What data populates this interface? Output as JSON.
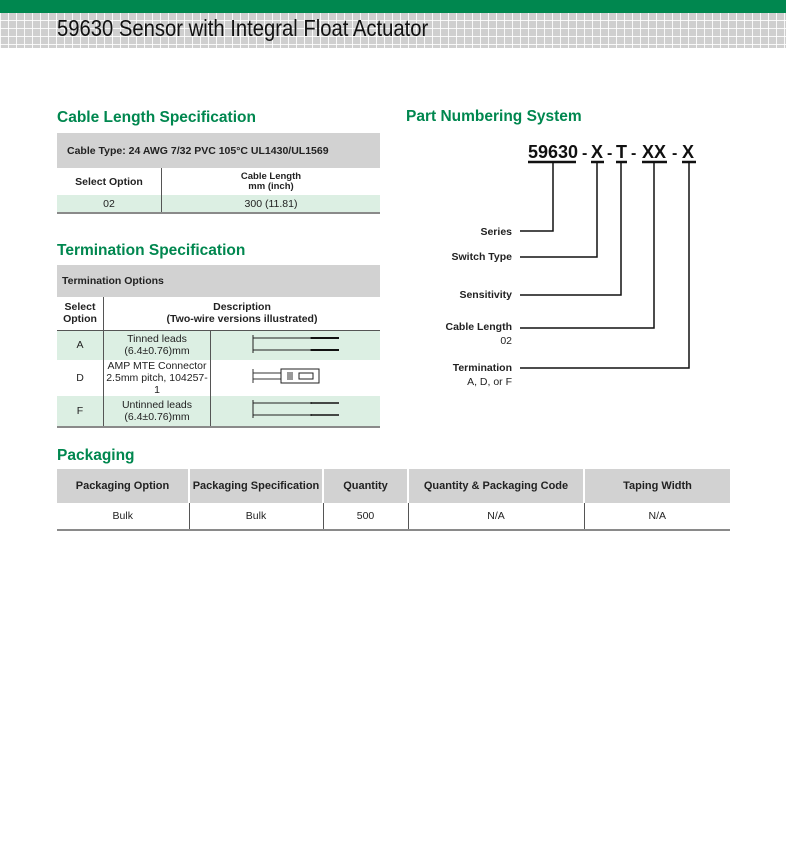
{
  "header": {
    "title": "59630 Sensor with Integral Float Actuator",
    "accent": "#00874f"
  },
  "cable": {
    "heading": "Cable Length Specification",
    "cable_type": "Cable Type: 24 AWG 7/32 PVC 105°C UL1430/UL1569",
    "col1": "Select Option",
    "col2a": "Cable Length",
    "col2b": "mm (inch)",
    "rows": [
      {
        "option": "02",
        "length": "300 (11.81)"
      }
    ]
  },
  "termination": {
    "heading": "Termination Specification",
    "options_label": "Termination Options",
    "col1a": "Select",
    "col1b": "Option",
    "col2a": "Description",
    "col2b": "(Two-wire versions illustrated)",
    "rows": [
      {
        "option": "A",
        "desc1": "Tinned leads (6.4±0.76)mm",
        "desc2": "",
        "icon": "tinned-leads-icon"
      },
      {
        "option": "D",
        "desc1": "AMP MTE Connector",
        "desc2": "2.5mm pitch, 104257-1",
        "icon": "connector-icon"
      },
      {
        "option": "F",
        "desc1": "Untinned leads (6.4±0.76)mm",
        "desc2": "",
        "icon": "untinned-leads-icon"
      }
    ]
  },
  "packaging": {
    "heading": "Packaging",
    "columns": [
      "Packaging Option",
      "Packaging Specification",
      "Quantity",
      "Quantity & Packaging Code",
      "Taping Width"
    ],
    "rows": [
      [
        "Bulk",
        "Bulk",
        "500",
        "N/A",
        "N/A"
      ]
    ]
  },
  "part_numbering": {
    "heading": "Part Numbering System",
    "segments": [
      "59630",
      "X",
      "T",
      "XX",
      "X"
    ],
    "separator": "-",
    "labels": [
      {
        "name": "Series",
        "sub": ""
      },
      {
        "name": "Switch Type",
        "sub": ""
      },
      {
        "name": "Sensitivity",
        "sub": ""
      },
      {
        "name": "Cable Length",
        "sub": "02"
      },
      {
        "name": "Termination",
        "sub": "A, D, or F"
      }
    ]
  }
}
